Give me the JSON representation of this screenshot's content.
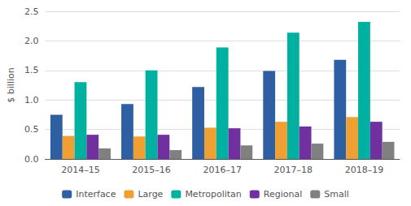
{
  "chart_data": {
    "type": "bar",
    "ylabel": "$ billion",
    "categories": [
      "2014–15",
      "2015–16",
      "2016–17",
      "2017–18",
      "2018–19"
    ],
    "series": [
      {
        "name": "Interface",
        "color": "#2e5fa3",
        "values": [
          0.75,
          0.93,
          1.22,
          1.49,
          1.68
        ]
      },
      {
        "name": "Large",
        "color": "#f0a033",
        "values": [
          0.39,
          0.38,
          0.53,
          0.63,
          0.71
        ]
      },
      {
        "name": "Metropolitan",
        "color": "#00b0a0",
        "values": [
          1.3,
          1.5,
          1.89,
          2.14,
          2.32
        ]
      },
      {
        "name": "Regional",
        "color": "#7030a0",
        "values": [
          0.41,
          0.41,
          0.52,
          0.55,
          0.63
        ]
      },
      {
        "name": "Small",
        "color": "#808080",
        "values": [
          0.18,
          0.15,
          0.23,
          0.26,
          0.29
        ]
      }
    ],
    "ylim": [
      0,
      2.5
    ],
    "yticks": [
      {
        "value": 0,
        "label": "0.0"
      },
      0.5,
      {
        "value": 1,
        "label": "1.0"
      },
      1.5,
      {
        "value": 2,
        "label": "2.0"
      },
      2.5
    ],
    "grid": true,
    "legend": "bottom"
  }
}
